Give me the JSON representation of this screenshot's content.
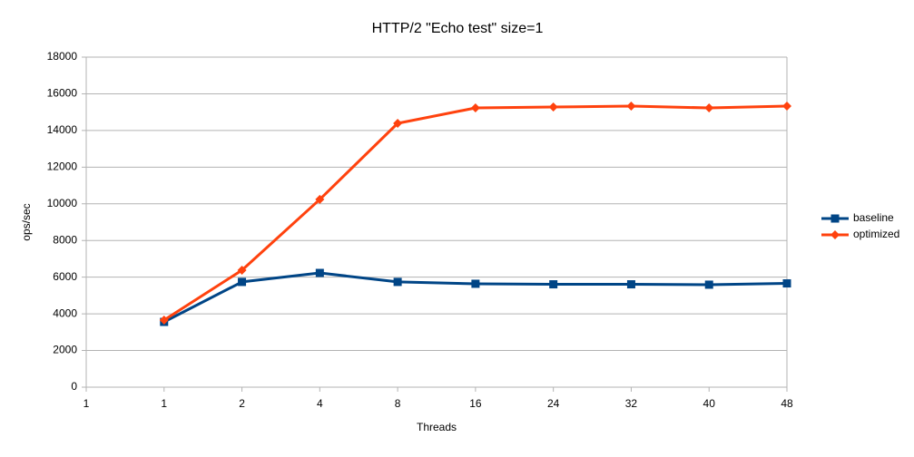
{
  "chart_data": {
    "type": "line",
    "title": "HTTP/2 \"Echo test\" size=1",
    "x_label": "Threads",
    "y_label": "ops/sec",
    "categories": [
      "1",
      "1",
      "2",
      "4",
      "8",
      "16",
      "24",
      "32",
      "40",
      "48"
    ],
    "series": [
      {
        "name": "baseline",
        "color": "#004586",
        "marker": "square",
        "values": [
          null,
          3560,
          5740,
          6230,
          5740,
          5640,
          5610,
          5610,
          5590,
          5660
        ]
      },
      {
        "name": "optimized",
        "color": "#ff420e",
        "marker": "diamond",
        "values": [
          null,
          3660,
          6380,
          10240,
          14390,
          15230,
          15280,
          15330,
          15230,
          15330
        ]
      }
    ],
    "ylim": [
      0,
      18000
    ],
    "yticks": [
      0,
      2000,
      4000,
      6000,
      8000,
      10000,
      12000,
      14000,
      16000,
      18000
    ],
    "grid": true,
    "legend": "right"
  }
}
